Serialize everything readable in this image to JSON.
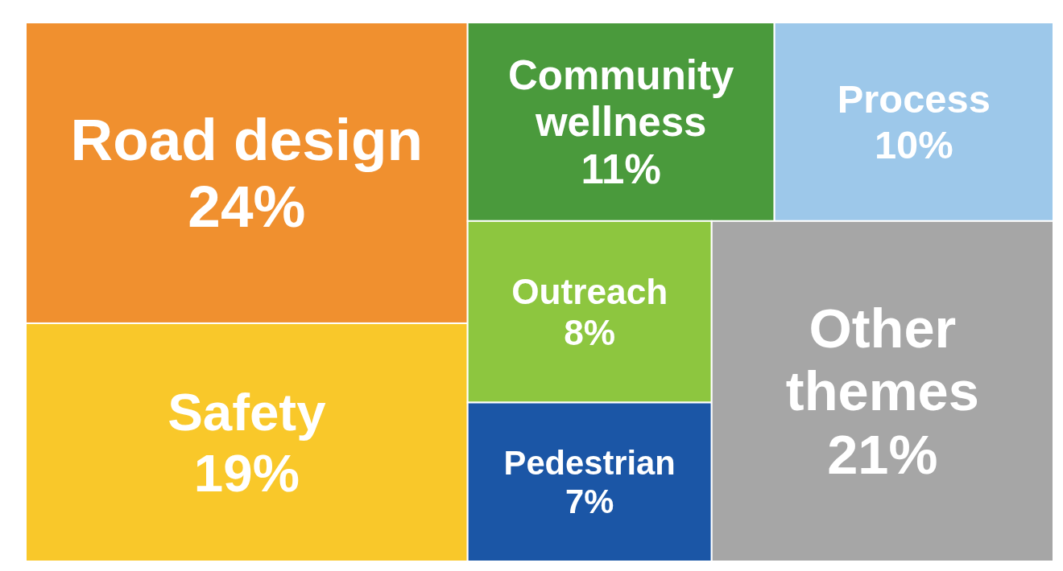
{
  "chart_data": {
    "type": "other",
    "categories": [
      "Road design",
      "Safety",
      "Community wellness",
      "Process",
      "Outreach",
      "Pedestrian",
      "Other themes"
    ],
    "values": [
      24,
      19,
      11,
      10,
      8,
      7,
      21
    ],
    "value_labels": [
      "24%",
      "19%",
      "11%",
      "10%",
      "8%",
      "7%",
      "21%"
    ],
    "colors": [
      "#f0902f",
      "#f9c82a",
      "#4a9a3c",
      "#9dc8ea",
      "#8dc63f",
      "#1b56a6",
      "#a6a6a6"
    ]
  }
}
